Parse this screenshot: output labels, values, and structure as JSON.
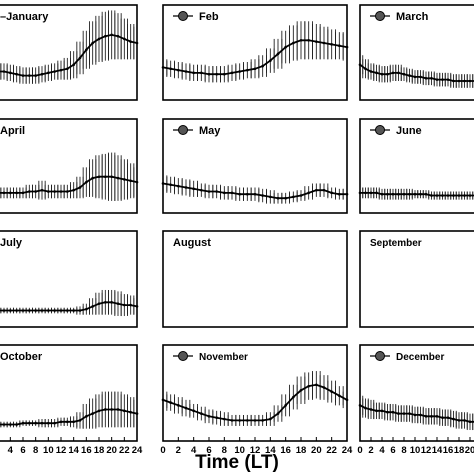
{
  "chart_data": {
    "type": "line",
    "xlabel": "Time (LT)",
    "x_ticks": [
      0,
      2,
      4,
      6,
      8,
      10,
      12,
      14,
      16,
      18,
      20,
      22,
      24
    ],
    "xlim": [
      0,
      24
    ],
    "grid": false,
    "error_bars": true,
    "panels": [
      {
        "name": "January",
        "has_marker": false,
        "x": [
          0,
          1,
          2,
          3,
          4,
          5,
          6,
          7,
          8,
          9,
          10,
          11,
          12,
          13,
          14,
          15,
          16,
          17,
          18,
          19,
          20,
          21,
          22,
          23,
          24
        ],
        "values": [
          62,
          62,
          61,
          61,
          60,
          59,
          58,
          58,
          58,
          59,
          60,
          61,
          62,
          63,
          66,
          71,
          77,
          82,
          85,
          87,
          88,
          87,
          85,
          83,
          82
        ],
        "errors": [
          6,
          6,
          6,
          6,
          6,
          6,
          6,
          6,
          6,
          6,
          6,
          6,
          7,
          8,
          10,
          12,
          14,
          16,
          17,
          18,
          18,
          17,
          15,
          13,
          12
        ]
      },
      {
        "name": "Feb",
        "has_marker": true,
        "x": [
          0,
          1,
          2,
          3,
          4,
          5,
          6,
          7,
          8,
          9,
          10,
          11,
          12,
          13,
          14,
          15,
          16,
          17,
          18,
          19,
          20,
          21,
          22,
          23,
          24
        ],
        "values": [
          64,
          63,
          62,
          61,
          60,
          60,
          59,
          59,
          59,
          60,
          61,
          62,
          63,
          65,
          69,
          74,
          79,
          82,
          84,
          84,
          83,
          82,
          81,
          80,
          79
        ],
        "errors": [
          6,
          6,
          6,
          6,
          6,
          6,
          6,
          6,
          6,
          6,
          6,
          6,
          7,
          8,
          9,
          11,
          12,
          13,
          14,
          14,
          13,
          12,
          11,
          10,
          10
        ]
      },
      {
        "name": "March",
        "has_marker": true,
        "x": [
          0,
          1,
          2,
          3,
          4,
          5,
          6,
          7,
          8,
          9,
          10,
          11,
          12,
          13,
          14,
          15,
          16,
          17,
          18,
          19,
          20,
          21,
          22,
          23,
          24
        ],
        "values": [
          66,
          63,
          61,
          60,
          59,
          59,
          60,
          60,
          59,
          58,
          57,
          57,
          56,
          56,
          55,
          55,
          55,
          54,
          54,
          54,
          54,
          54,
          54,
          54,
          54
        ],
        "errors": [
          7,
          7,
          6,
          6,
          6,
          6,
          6,
          6,
          5,
          5,
          5,
          5,
          5,
          5,
          5,
          5,
          5,
          5,
          5,
          5,
          5,
          5,
          5,
          5,
          5
        ]
      },
      {
        "name": "April",
        "has_marker": false,
        "x": [
          0,
          1,
          2,
          3,
          4,
          5,
          6,
          7,
          8,
          9,
          10,
          11,
          12,
          13,
          14,
          15,
          16,
          17,
          18,
          19,
          20,
          21,
          22,
          23,
          24
        ],
        "values": [
          54,
          54,
          55,
          55,
          55,
          55,
          55,
          56,
          56,
          57,
          56,
          56,
          56,
          56,
          57,
          59,
          63,
          66,
          67,
          67,
          67,
          66,
          65,
          64,
          63
        ],
        "errors": [
          4,
          4,
          4,
          4,
          4,
          4,
          4,
          5,
          5,
          7,
          5,
          5,
          5,
          5,
          6,
          8,
          11,
          14,
          16,
          17,
          18,
          17,
          15,
          13,
          11
        ]
      },
      {
        "name": "May",
        "has_marker": true,
        "x": [
          0,
          1,
          2,
          3,
          4,
          5,
          6,
          7,
          8,
          9,
          10,
          11,
          12,
          13,
          14,
          15,
          16,
          17,
          18,
          19,
          20,
          21,
          22,
          23,
          24
        ],
        "values": [
          62,
          61,
          60,
          59,
          58,
          57,
          56,
          56,
          55,
          55,
          54,
          54,
          54,
          53,
          52,
          51,
          51,
          52,
          53,
          55,
          57,
          57,
          55,
          54,
          54
        ],
        "errors": [
          6,
          6,
          6,
          6,
          6,
          5,
          5,
          5,
          5,
          5,
          5,
          5,
          5,
          5,
          5,
          4,
          4,
          4,
          4,
          5,
          5,
          5,
          4,
          4,
          4
        ]
      },
      {
        "name": "June",
        "has_marker": true,
        "x": [
          0,
          1,
          2,
          3,
          4,
          5,
          6,
          7,
          8,
          9,
          10,
          11,
          12,
          13,
          14,
          15,
          16,
          17,
          18,
          19,
          20,
          21,
          22,
          23,
          24
        ],
        "values": [
          55,
          55,
          55,
          55,
          54,
          54,
          54,
          54,
          54,
          54,
          54,
          54,
          54,
          53,
          53,
          53,
          53,
          53,
          53,
          53,
          53,
          53,
          53,
          53,
          53
        ],
        "errors": [
          4,
          4,
          4,
          4,
          4,
          4,
          4,
          4,
          4,
          4,
          3,
          3,
          3,
          3,
          3,
          3,
          3,
          3,
          3,
          3,
          3,
          3,
          3,
          3,
          3
        ]
      },
      {
        "name": "July",
        "has_marker": false,
        "x": [
          0,
          1,
          2,
          3,
          4,
          5,
          6,
          7,
          8,
          9,
          10,
          11,
          12,
          13,
          14,
          15,
          16,
          17,
          18,
          19,
          20,
          21,
          22,
          23,
          24
        ],
        "values": [
          52,
          52,
          52,
          52,
          52,
          52,
          52,
          52,
          52,
          52,
          52,
          52,
          52,
          52,
          52,
          52,
          53,
          55,
          57,
          58,
          58,
          57,
          56,
          56,
          55
        ],
        "errors": [
          2,
          2,
          2,
          2,
          2,
          2,
          2,
          2,
          2,
          2,
          2,
          2,
          2,
          2,
          2,
          3,
          4,
          6,
          8,
          9,
          9,
          9,
          8,
          7,
          6
        ]
      },
      {
        "name": "August",
        "has_marker": false,
        "x": [],
        "values": [],
        "errors": []
      },
      {
        "name": "September",
        "has_marker": false,
        "x": [],
        "values": [],
        "errors": []
      },
      {
        "name": "October",
        "has_marker": false,
        "x": [
          0,
          1,
          2,
          3,
          4,
          5,
          6,
          7,
          8,
          9,
          10,
          11,
          12,
          13,
          14,
          15,
          16,
          17,
          18,
          19,
          20,
          21,
          22,
          23,
          24
        ],
        "values": [
          52,
          52,
          52,
          52,
          52,
          52,
          53,
          53,
          53,
          53,
          53,
          53,
          54,
          54,
          54,
          55,
          58,
          60,
          62,
          63,
          63,
          63,
          62,
          61,
          60
        ],
        "errors": [
          2,
          2,
          2,
          2,
          2,
          2,
          2,
          2,
          2,
          3,
          3,
          3,
          3,
          3,
          4,
          6,
          9,
          11,
          12,
          13,
          13,
          13,
          12,
          11,
          10
        ]
      },
      {
        "name": "November",
        "has_marker": true,
        "x": [
          0,
          1,
          2,
          3,
          4,
          5,
          6,
          7,
          8,
          9,
          10,
          11,
          12,
          13,
          14,
          15,
          16,
          17,
          18,
          19,
          20,
          21,
          22,
          23,
          24
        ],
        "values": [
          70,
          68,
          66,
          64,
          62,
          60,
          58,
          57,
          56,
          55,
          55,
          55,
          55,
          55,
          56,
          60,
          66,
          72,
          77,
          80,
          81,
          79,
          76,
          73,
          70
        ],
        "errors": [
          6,
          6,
          6,
          6,
          5,
          5,
          5,
          5,
          5,
          4,
          4,
          4,
          4,
          4,
          5,
          6,
          8,
          9,
          10,
          10,
          10,
          9,
          8,
          7,
          6
        ]
      },
      {
        "name": "December",
        "has_marker": true,
        "x": [
          0,
          1,
          2,
          3,
          4,
          5,
          6,
          7,
          8,
          9,
          10,
          11,
          12,
          13,
          14,
          15,
          16,
          17,
          18,
          19,
          20,
          21,
          22,
          23,
          24
        ],
        "values": [
          66,
          64,
          63,
          62,
          62,
          61,
          61,
          60,
          60,
          60,
          59,
          59,
          58,
          58,
          58,
          57,
          57,
          56,
          55,
          55,
          54,
          54,
          56,
          62,
          68
        ],
        "errors": [
          7,
          7,
          7,
          6,
          6,
          6,
          6,
          6,
          6,
          6,
          6,
          6,
          6,
          6,
          6,
          6,
          6,
          6,
          6,
          6,
          6,
          6,
          7,
          12,
          18
        ]
      }
    ]
  }
}
